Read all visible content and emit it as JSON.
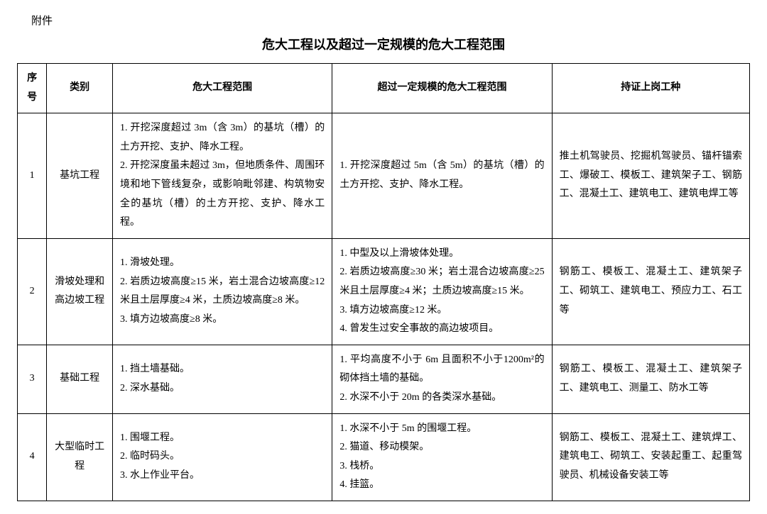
{
  "attachment_label": "附件",
  "title": "危大工程以及超过一定规模的危大工程范围",
  "headers": {
    "idx": "序号",
    "cat": "类别",
    "scope_a": "危大工程范围",
    "scope_b": "超过一定规模的危大工程范围",
    "scope_c": "持证上岗工种"
  },
  "rows": [
    {
      "idx": "1",
      "cat": "基坑工程",
      "a": "1. 开挖深度超过 3m（含 3m）的基坑（槽）的土方开挖、支护、降水工程。\n2. 开挖深度虽未超过 3m，但地质条件、周围环境和地下管线复杂，或影响毗邻建、构筑物安全的基坑（槽）的土方开挖、支护、降水工程。",
      "b": "1. 开挖深度超过 5m（含 5m）的基坑（槽）的土方开挖、支护、降水工程。",
      "c": "推土机驾驶员、挖掘机驾驶员、锚杆锚索工、爆破工、模板工、建筑架子工、钢筋工、混凝土工、建筑电工、建筑电焊工等"
    },
    {
      "idx": "2",
      "cat": "滑坡处理和高边坡工程",
      "a": "1. 滑坡处理。\n2. 岩质边坡高度≥15 米，岩土混合边坡高度≥12 米且土层厚度≥4 米，土质边坡高度≥8 米。\n3. 填方边坡高度≥8 米。",
      "b": "1. 中型及以上滑坡体处理。\n2. 岩质边坡高度≥30 米；岩土混合边坡高度≥25 米且土层厚度≥4 米；土质边坡高度≥15 米。\n3. 填方边坡高度≥12 米。\n4. 曾发生过安全事故的高边坡项目。",
      "c": "钢筋工、模板工、混凝土工、建筑架子工、砌筑工、建筑电工、预应力工、石工等"
    },
    {
      "idx": "3",
      "cat": "基础工程",
      "a": "1. 挡土墙基础。\n2. 深水基础。",
      "b": "1. 平均高度不小于 6m 且面积不小于1200m²的砌体挡土墙的基础。\n2. 水深不小于 20m 的各类深水基础。",
      "c": "钢筋工、模板工、混凝土工、建筑架子工、建筑电工、测量工、防水工等"
    },
    {
      "idx": "4",
      "cat": "大型临时工程",
      "a": "1. 围堰工程。\n2. 临时码头。\n3. 水上作业平台。",
      "b": "1. 水深不小于 5m 的围堰工程。\n2. 猫道、移动模架。\n3. 栈桥。\n4. 挂篮。",
      "c": "钢筋工、模板工、混凝土工、建筑焊工、建筑电工、砌筑工、安装起重工、起重驾驶员、机械设备安装工等"
    }
  ],
  "styling": {
    "background_color": "#ffffff",
    "text_color": "#000000",
    "border_color": "#000000",
    "font_family": "SimSun",
    "title_fontsize": 18,
    "body_fontsize": 14,
    "line_height": 1.9,
    "col_widths_pct": [
      4,
      9,
      30,
      30,
      27
    ]
  }
}
